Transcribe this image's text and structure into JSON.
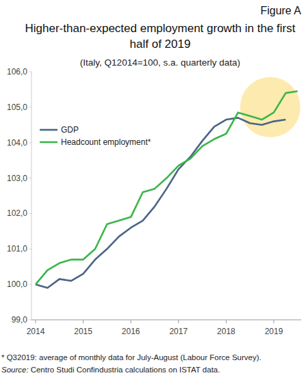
{
  "chart_data": {
    "type": "line",
    "figure_label": "Figure A",
    "title": "Higher-than-expected employment growth in the first half of 2019",
    "subtitle": "(Italy, Q12014=100, s.a. quarterly data)",
    "note": "* Q32019: average of monthly data for July-August (Labour Force Survey).",
    "source": "Source: Centro Studi Confindustria calculations on ISTAT data.",
    "categories": [
      "2014",
      null,
      null,
      null,
      "2015",
      null,
      null,
      null,
      "2016",
      null,
      null,
      null,
      "2017",
      null,
      null,
      null,
      "2018",
      null,
      null,
      null,
      "2019",
      null,
      null
    ],
    "series": [
      {
        "name": "GDP",
        "color": "#4a6587",
        "values": [
          100.0,
          99.9,
          100.15,
          100.1,
          100.3,
          100.7,
          101.0,
          101.35,
          101.6,
          101.8,
          102.2,
          102.7,
          103.25,
          103.6,
          104.05,
          104.45,
          104.65,
          104.7,
          104.55,
          104.5,
          104.6,
          104.65,
          null
        ]
      },
      {
        "name": "Headcount employment*",
        "color": "#3cb54a",
        "values": [
          100.0,
          100.4,
          100.6,
          100.7,
          100.7,
          101.0,
          101.7,
          101.8,
          101.9,
          102.6,
          102.7,
          103.0,
          103.35,
          103.55,
          103.9,
          104.1,
          104.25,
          104.85,
          104.75,
          104.65,
          104.85,
          105.4,
          105.45
        ]
      }
    ],
    "ylim": [
      99,
      106
    ],
    "yticks": [
      {
        "value": 99,
        "label": "99,0"
      },
      {
        "value": 100,
        "label": "100,0"
      },
      {
        "value": 101,
        "label": "101,0"
      },
      {
        "value": 102,
        "label": "102,0"
      },
      {
        "value": 103,
        "label": "103,0"
      },
      {
        "value": 104,
        "label": "104,0"
      },
      {
        "value": 105,
        "label": "105,0"
      },
      {
        "value": 106,
        "label": "106,0"
      }
    ],
    "grid": false,
    "legend": "upper left"
  }
}
